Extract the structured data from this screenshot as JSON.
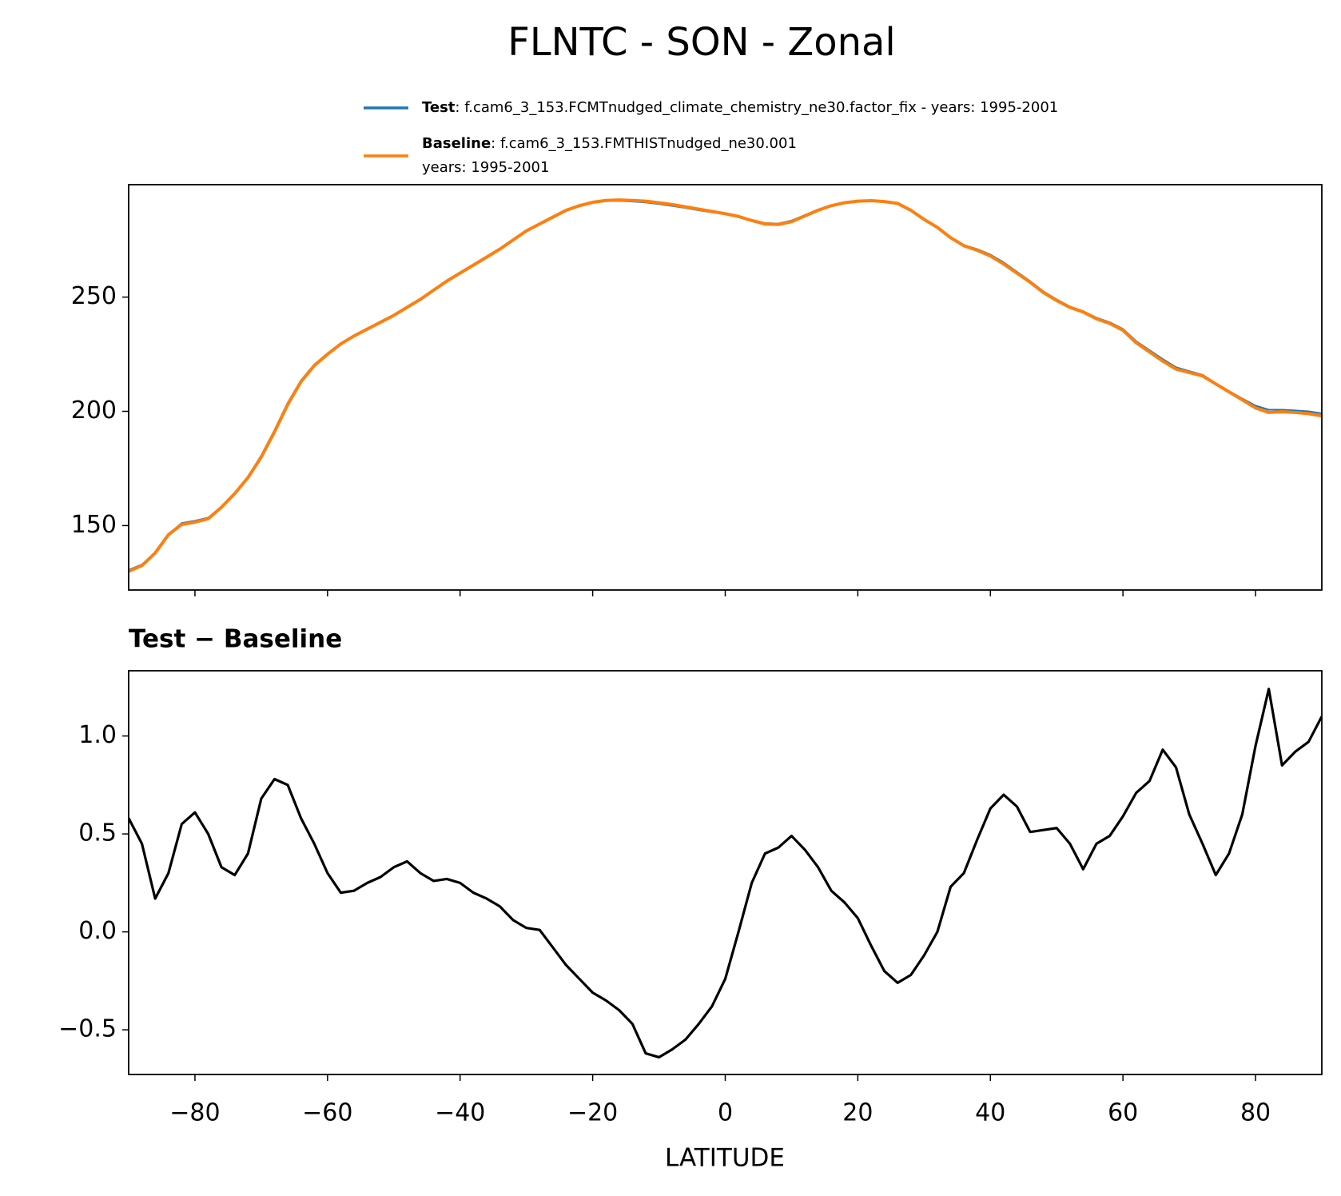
{
  "title": "FLNTC - SON - Zonal",
  "chart_data": [
    {
      "type": "line",
      "x": [
        -90,
        -88,
        -86,
        -84,
        -82,
        -80,
        -78,
        -76,
        -74,
        -72,
        -70,
        -68,
        -66,
        -64,
        -62,
        -60,
        -58,
        -56,
        -54,
        -52,
        -50,
        -48,
        -46,
        -44,
        -42,
        -40,
        -38,
        -36,
        -34,
        -32,
        -30,
        -28,
        -26,
        -24,
        -22,
        -20,
        -18,
        -16,
        -14,
        -12,
        -10,
        -8,
        -6,
        -4,
        -2,
        0,
        2,
        4,
        6,
        8,
        10,
        12,
        14,
        16,
        18,
        20,
        22,
        24,
        26,
        28,
        30,
        32,
        34,
        36,
        38,
        40,
        42,
        44,
        46,
        48,
        50,
        52,
        54,
        56,
        58,
        60,
        62,
        64,
        66,
        68,
        70,
        72,
        74,
        76,
        78,
        80,
        82,
        84,
        86,
        88,
        90
      ],
      "series": [
        {
          "name": "Test",
          "color": "#1f77b4",
          "legend_text": [
            ": f.cam6_3_153.FCMTnudged_climate_chemistry_ne30.factor_fix - years: 1995-2001"
          ],
          "values": [
            130.6,
            133.0,
            138.2,
            146.3,
            151.1,
            152.1,
            153.5,
            158.3,
            164.3,
            171.4,
            180.7,
            191.8,
            203.8,
            213.6,
            220.5,
            225.3,
            229.7,
            233.2,
            236.3,
            239.3,
            242.3,
            245.9,
            249.3,
            253.3,
            257.3,
            260.8,
            264.2,
            267.7,
            271.1,
            275.1,
            279.0,
            282.0,
            284.9,
            287.8,
            289.8,
            291.2,
            292.0,
            292.1,
            291.8,
            291.4,
            290.7,
            289.9,
            289.0,
            288.0,
            287.1,
            286.3,
            285.3,
            283.8,
            282.4,
            282.2,
            283.5,
            285.9,
            288.3,
            290.2,
            291.5,
            292.1,
            292.1,
            291.6,
            290.7,
            287.8,
            283.9,
            280.5,
            276.2,
            272.8,
            271.0,
            268.6,
            265.2,
            261.1,
            257.0,
            252.5,
            249.0,
            245.9,
            243.8,
            241.0,
            239.0,
            236.1,
            230.7,
            226.8,
            222.9,
            219.3,
            217.6,
            216.0,
            212.3,
            208.9,
            205.6,
            202.5,
            200.7,
            200.7,
            200.4,
            200.0,
            199.1
          ]
        },
        {
          "name": "Baseline",
          "color": "#ff7f0e",
          "legend_text": [
            ": f.cam6_3_153.FMTHISTnudged_ne30.001",
            "years: 1995-2001"
          ],
          "values": [
            130,
            132.5,
            138,
            146,
            150.5,
            151.5,
            153,
            158,
            164,
            171,
            180,
            191,
            203,
            213,
            220,
            225,
            229.5,
            233,
            236,
            239,
            242,
            245.5,
            249,
            253,
            257,
            260.5,
            264,
            267.5,
            271,
            275,
            279,
            282,
            285,
            288,
            290,
            291.5,
            292.3,
            292.5,
            292.3,
            292,
            291.3,
            290.5,
            289.5,
            288.5,
            287.5,
            286.5,
            285.3,
            283.5,
            282,
            281.8,
            283,
            285.5,
            288,
            290,
            291.3,
            292,
            292.2,
            291.8,
            291,
            288,
            284,
            280.5,
            276,
            272.5,
            270.5,
            268,
            264.5,
            260.5,
            256.5,
            252,
            248.5,
            245.5,
            243.5,
            240.5,
            238.5,
            235.5,
            230,
            226,
            222,
            218.5,
            217,
            215.5,
            212,
            208.5,
            205,
            201.5,
            199.5,
            199.8,
            199.5,
            199,
            198
          ]
        }
      ],
      "xlim": [
        -90,
        90
      ],
      "xticks": [
        -80,
        -60,
        -40,
        -20,
        0,
        20,
        40,
        60,
        80
      ],
      "ylim": [
        121.8,
        299.2
      ],
      "yticks": [
        150,
        200,
        250
      ]
    },
    {
      "type": "line",
      "title": "Test − Baseline",
      "xlabel": "LATITUDE",
      "x": [
        -90,
        -88,
        -86,
        -84,
        -82,
        -80,
        -78,
        -76,
        -74,
        -72,
        -70,
        -68,
        -66,
        -64,
        -62,
        -60,
        -58,
        -56,
        -54,
        -52,
        -50,
        -48,
        -46,
        -44,
        -42,
        -40,
        -38,
        -36,
        -34,
        -32,
        -30,
        -28,
        -26,
        -24,
        -22,
        -20,
        -18,
        -16,
        -14,
        -12,
        -10,
        -8,
        -6,
        -4,
        -2,
        0,
        2,
        4,
        6,
        8,
        10,
        12,
        14,
        16,
        18,
        20,
        22,
        24,
        26,
        28,
        30,
        32,
        34,
        36,
        38,
        40,
        42,
        44,
        46,
        48,
        50,
        52,
        54,
        56,
        58,
        60,
        62,
        64,
        66,
        68,
        70,
        72,
        74,
        76,
        78,
        80,
        82,
        84,
        86,
        88,
        90
      ],
      "color": "#000000",
      "values": [
        0.58,
        0.45,
        0.17,
        0.3,
        0.55,
        0.61,
        0.5,
        0.33,
        0.29,
        0.4,
        0.68,
        0.78,
        0.75,
        0.58,
        0.45,
        0.3,
        0.2,
        0.21,
        0.25,
        0.28,
        0.33,
        0.36,
        0.3,
        0.26,
        0.27,
        0.25,
        0.2,
        0.17,
        0.13,
        0.06,
        0.02,
        0.01,
        -0.08,
        -0.17,
        -0.24,
        -0.31,
        -0.35,
        -0.4,
        -0.47,
        -0.62,
        -0.64,
        -0.6,
        -0.55,
        -0.47,
        -0.38,
        -0.24,
        0.0,
        0.25,
        0.4,
        0.43,
        0.49,
        0.42,
        0.33,
        0.21,
        0.15,
        0.07,
        -0.07,
        -0.2,
        -0.26,
        -0.22,
        -0.12,
        0.0,
        0.23,
        0.3,
        0.47,
        0.63,
        0.7,
        0.64,
        0.51,
        0.52,
        0.53,
        0.45,
        0.32,
        0.45,
        0.49,
        0.59,
        0.71,
        0.77,
        0.93,
        0.84,
        0.6,
        0.45,
        0.29,
        0.4,
        0.6,
        0.95,
        1.24,
        0.85,
        0.92,
        0.97,
        1.1
      ],
      "xlim": [
        -90,
        90
      ],
      "xticks": [
        {
          "value": -80,
          "label": "−80"
        },
        {
          "value": -60,
          "label": "−60"
        },
        {
          "value": -40,
          "label": "−40"
        },
        {
          "value": -20,
          "label": "−20"
        },
        0,
        20,
        40,
        60,
        80
      ],
      "ylim": [
        -0.728,
        1.333
      ],
      "yticks": [
        {
          "value": -0.5,
          "label": "−0.5"
        },
        {
          "value": 0,
          "label": "0.0"
        },
        0.5,
        {
          "value": 1,
          "label": "1.0"
        }
      ]
    }
  ]
}
